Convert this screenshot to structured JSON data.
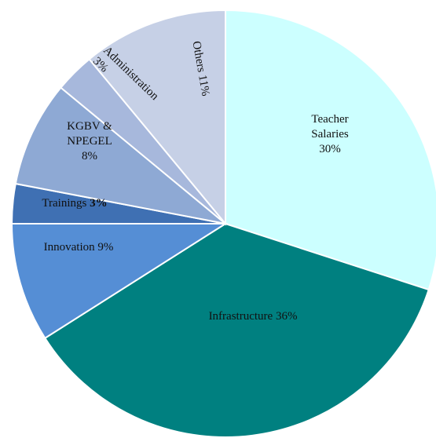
{
  "chart_data": {
    "type": "pie",
    "categories": [
      "Teacher Salaries",
      "Infrastructure",
      "Innovation",
      "Trainings",
      "KGBV & NPEGEL",
      "Administration",
      "Others"
    ],
    "values": [
      30,
      36,
      9,
      3,
      8,
      3,
      11
    ],
    "value_labels": [
      "30%",
      "36%",
      "9%",
      "3%",
      "8%",
      "3%",
      "11%"
    ],
    "colors": [
      "#ccffff",
      "#008080",
      "#558ed5",
      "#3f70b3",
      "#8ea9d4",
      "#a7b8dc",
      "#c6d0e6"
    ]
  }
}
